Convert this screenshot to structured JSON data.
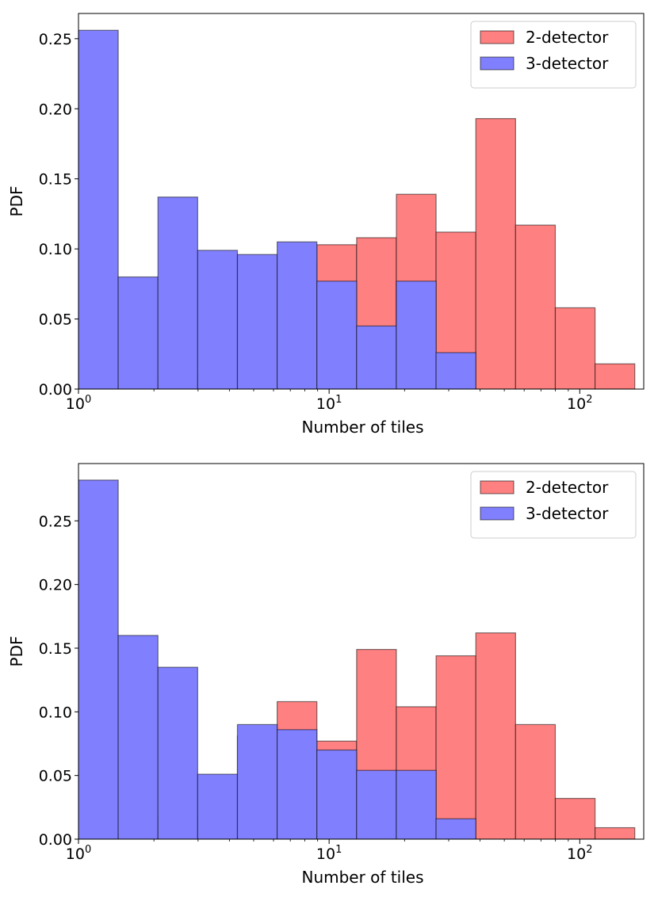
{
  "chart_data": [
    {
      "type": "bar",
      "subtype": "histogram",
      "xscale": "log",
      "xlabel": "Number of tiles",
      "ylabel": "PDF",
      "xlim": [
        1,
        180
      ],
      "ylim": [
        0,
        0.268
      ],
      "bin_edges": [
        1.0,
        1.4406,
        2.0753,
        2.9897,
        4.3069,
        6.2044,
        8.938,
        12.876,
        18.549,
        26.721,
        38.494,
        55.454,
        79.887,
        115.09,
        165.79
      ],
      "yticks": [
        0.0,
        0.05,
        0.1,
        0.15,
        0.2,
        0.25
      ],
      "ytick_labels": [
        "0.00",
        "0.05",
        "0.10",
        "0.15",
        "0.20",
        "0.25"
      ],
      "xticks": [
        1,
        10,
        100
      ],
      "xtick_labels": [
        {
          "base": "10",
          "exp": "0"
        },
        {
          "base": "10",
          "exp": "1"
        },
        {
          "base": "10",
          "exp": "2"
        }
      ],
      "legend_position": "top-right",
      "series": [
        {
          "name": "2-detector",
          "color": "#ff8080",
          "values": [
            0.0,
            0.004,
            0.004,
            0.013,
            0.031,
            0.09,
            0.103,
            0.108,
            0.139,
            0.112,
            0.193,
            0.117,
            0.058,
            0.018
          ]
        },
        {
          "name": "3-detector",
          "color": "#8080ff",
          "values": [
            0.256,
            0.08,
            0.137,
            0.099,
            0.096,
            0.105,
            0.077,
            0.045,
            0.077,
            0.026,
            0.0,
            0.0,
            0.0,
            0.0
          ]
        }
      ]
    },
    {
      "type": "bar",
      "subtype": "histogram",
      "xscale": "log",
      "xlabel": "Number of tiles",
      "ylabel": "PDF",
      "xlim": [
        1,
        180
      ],
      "ylim": [
        0,
        0.295
      ],
      "bin_edges": [
        1.0,
        1.4406,
        2.0753,
        2.9897,
        4.3069,
        6.2044,
        8.938,
        12.876,
        18.549,
        26.721,
        38.494,
        55.454,
        79.887,
        115.09,
        165.79
      ],
      "yticks": [
        0.0,
        0.05,
        0.1,
        0.15,
        0.2,
        0.25
      ],
      "ytick_labels": [
        "0.00",
        "0.05",
        "0.10",
        "0.15",
        "0.20",
        "0.25"
      ],
      "xticks": [
        1,
        10,
        100
      ],
      "xtick_labels": [
        {
          "base": "10",
          "exp": "0"
        },
        {
          "base": "10",
          "exp": "1"
        },
        {
          "base": "10",
          "exp": "2"
        }
      ],
      "legend_position": "top-right",
      "series": [
        {
          "name": "2-detector",
          "color": "#ff8080",
          "values": [
            0.004,
            0.004,
            0.018,
            0.018,
            0.081,
            0.108,
            0.077,
            0.149,
            0.104,
            0.144,
            0.162,
            0.09,
            0.032,
            0.009
          ]
        },
        {
          "name": "3-detector",
          "color": "#8080ff",
          "values": [
            0.282,
            0.16,
            0.135,
            0.051,
            0.09,
            0.086,
            0.07,
            0.054,
            0.054,
            0.016,
            0.0,
            0.0,
            0.0,
            0.0
          ]
        }
      ]
    }
  ]
}
